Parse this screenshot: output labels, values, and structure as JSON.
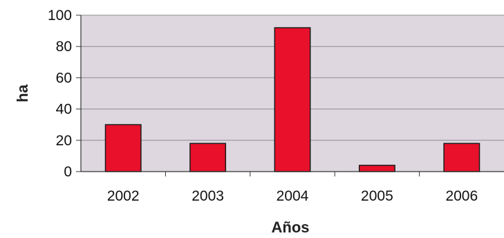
{
  "chart_data": {
    "type": "bar",
    "title": "",
    "xlabel": "Años",
    "ylabel": "ha",
    "categories": [
      "2002",
      "2003",
      "2004",
      "2005",
      "2006"
    ],
    "values": [
      30,
      18,
      92,
      4,
      18
    ],
    "ylim": [
      0,
      100
    ],
    "yticks": [
      "0",
      "20",
      "40",
      "60",
      "80",
      "100"
    ],
    "grid": true,
    "legend": "none",
    "colors": {
      "bar": "#e8102a",
      "bar_edge": "#1a1a1a",
      "plot_background": "#ded7df",
      "gridline": "#8c8c92",
      "axis": "#333333"
    }
  }
}
